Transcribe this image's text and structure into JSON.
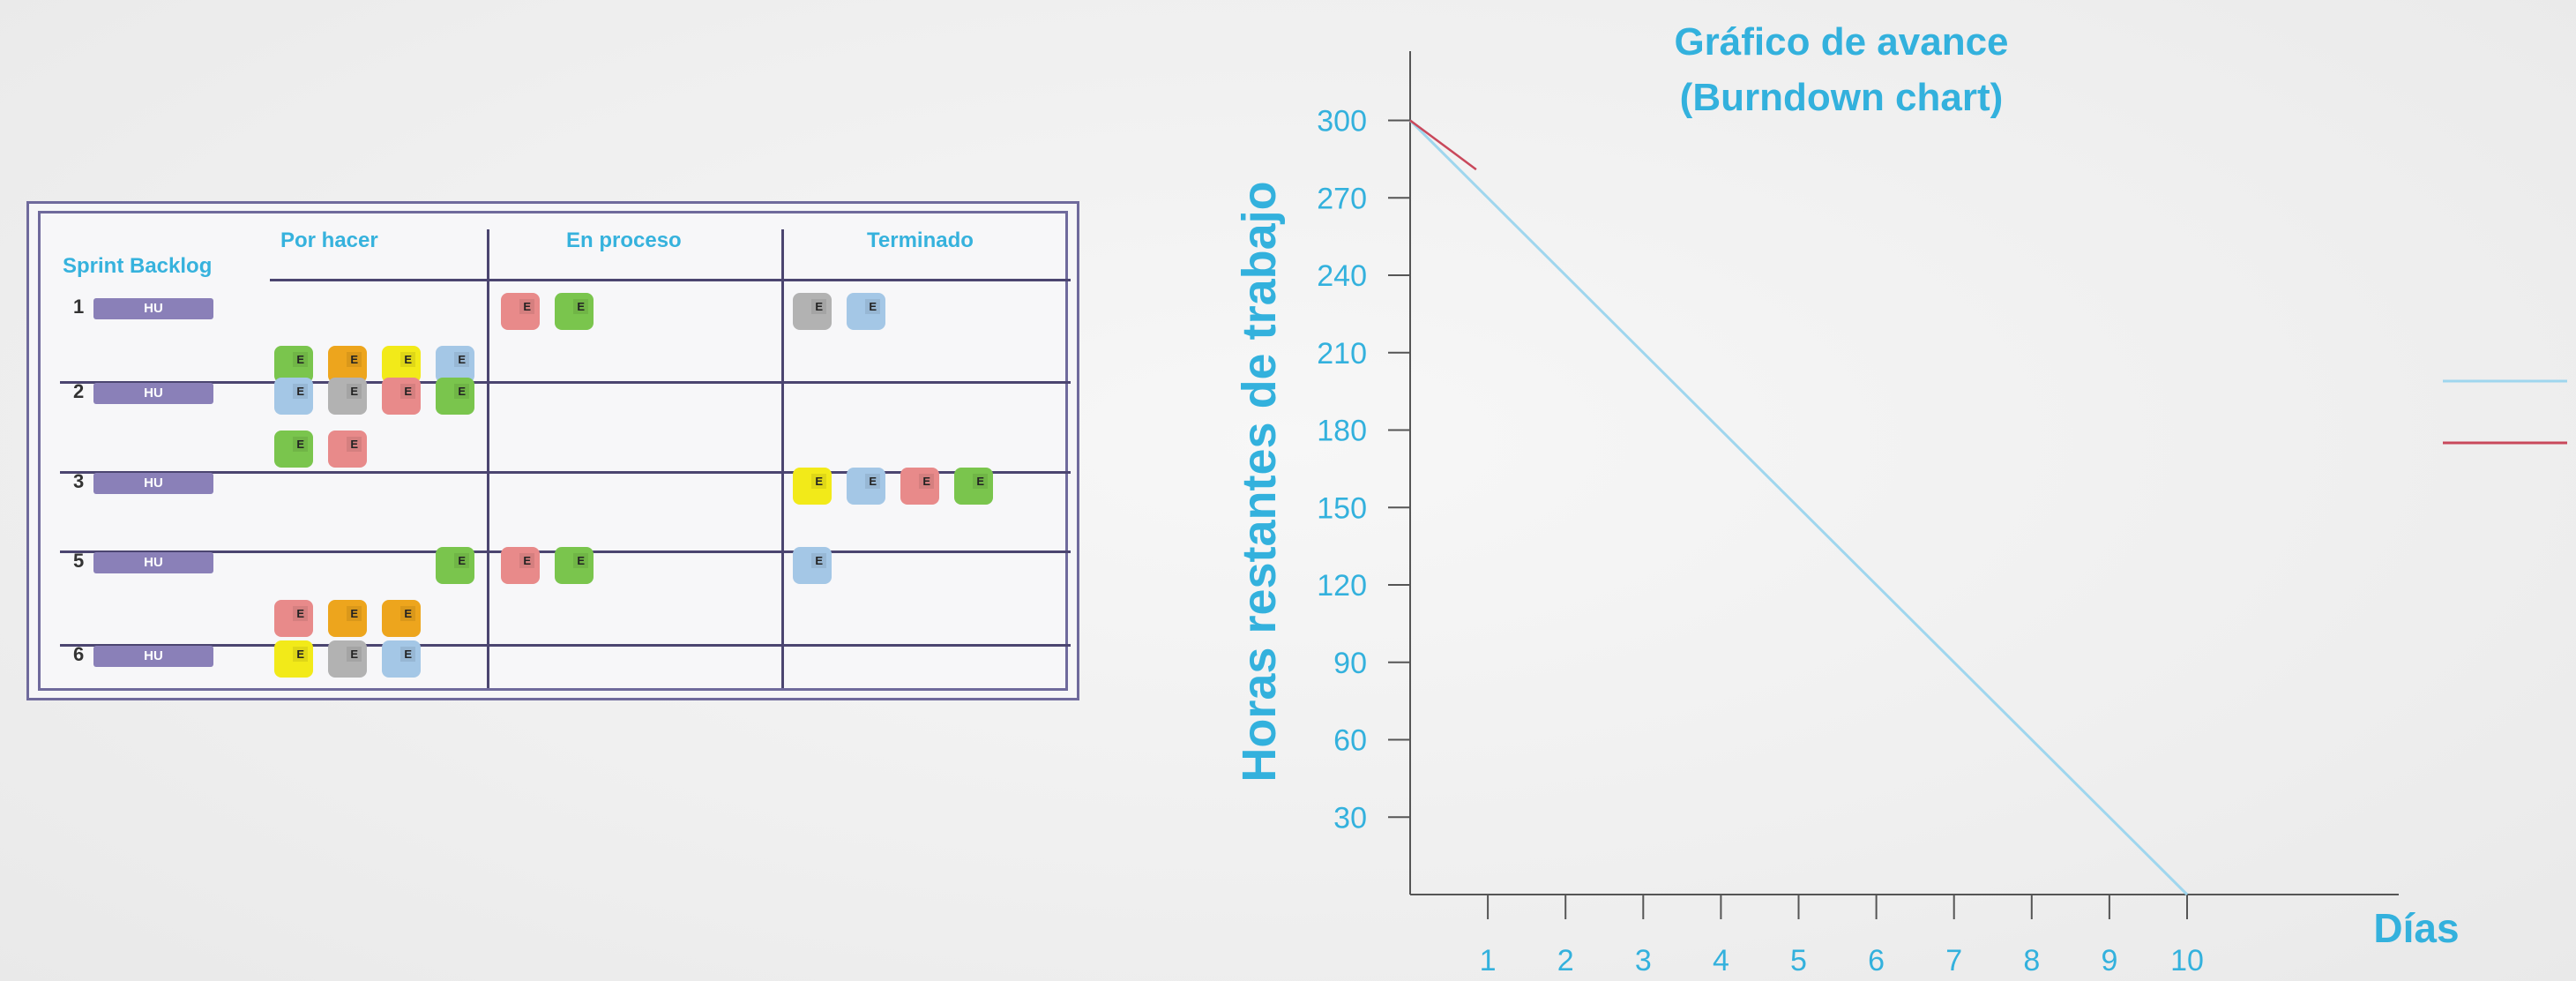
{
  "board": {
    "title": "Sprint Backlog",
    "columns": [
      "Por hacer",
      "En proceso",
      "Terminado"
    ],
    "card_label": "E",
    "rows": [
      {
        "number": "1",
        "story": "HU",
        "por_hacer": [
          "green",
          "orange",
          "yellow",
          "blue"
        ],
        "en_proceso": [
          "red",
          "green"
        ],
        "terminado": [
          "gray",
          "blue"
        ]
      },
      {
        "number": "2",
        "story": "HU",
        "por_hacer": [
          "blue",
          "gray",
          "red",
          "green",
          "green",
          "red"
        ],
        "en_proceso": [],
        "terminado": []
      },
      {
        "number": "3",
        "story": "HU",
        "por_hacer": [],
        "en_proceso": [],
        "terminado": [
          "yellow",
          "blue",
          "red",
          "green"
        ]
      },
      {
        "number": "5",
        "story": "HU",
        "por_hacer": [
          "green",
          "red",
          "orange",
          "orange"
        ],
        "en_proceso": [
          "red",
          "green"
        ],
        "terminado": [
          "blue"
        ]
      },
      {
        "number": "6",
        "story": "HU",
        "por_hacer": [
          "yellow",
          "gray",
          "blue"
        ],
        "en_proceso": [],
        "terminado": []
      }
    ]
  },
  "colors": {
    "accent": "#33b1dd",
    "board_border": "#6f6a9c",
    "ideal_line": "#9fd6ee",
    "actual_line": "#c9485b",
    "green": "#7ac54d",
    "orange": "#eda51d",
    "yellow": "#f2ea19",
    "blue": "#a4c7e6",
    "gray": "#b2b2b2",
    "red": "#e88a8a"
  },
  "chart_data": {
    "type": "line",
    "title": "Gráfico de avance",
    "subtitle": "(Burndown chart)",
    "xlabel": "Días",
    "ylabel": "Horas restantes de trabajo",
    "x_ticks": [
      1,
      2,
      3,
      4,
      5,
      6,
      7,
      8,
      9,
      10
    ],
    "y_ticks": [
      30,
      60,
      90,
      120,
      150,
      180,
      210,
      240,
      270,
      300
    ],
    "xlim": [
      0,
      10
    ],
    "ylim": [
      0,
      330
    ],
    "series": [
      {
        "x": [
          0,
          10
        ],
        "y": [
          300,
          0
        ],
        "color": "#9fd6ee"
      },
      {
        "x": [
          0,
          0.85
        ],
        "y": [
          300,
          281
        ],
        "color": "#c9485b"
      }
    ],
    "legend_placement": "right",
    "grid": false
  }
}
